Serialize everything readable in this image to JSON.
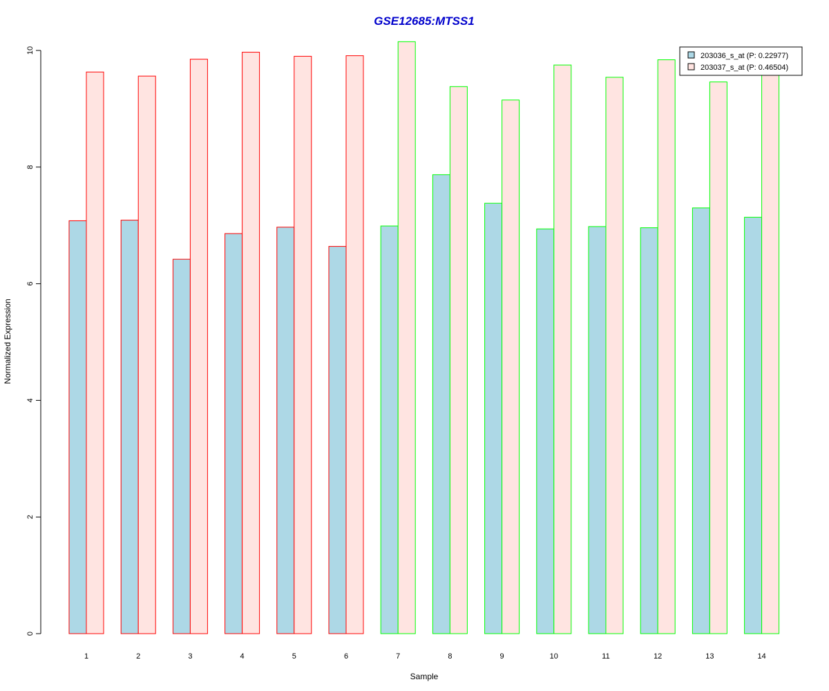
{
  "chart_data": {
    "type": "bar",
    "title": "GSE12685:MTSS1",
    "xlabel": "Sample",
    "ylabel": "Normalized Expression",
    "ylim": [
      0,
      10
    ],
    "y_ticks": [
      "0",
      "2",
      "4",
      "6",
      "8",
      "10"
    ],
    "categories": [
      "1",
      "2",
      "3",
      "4",
      "5",
      "6",
      "7",
      "8",
      "9",
      "10",
      "11",
      "12",
      "13",
      "14"
    ],
    "series": [
      {
        "name": "203036_s_at (P: 0.22977)",
        "fill": "#add8e6",
        "values": [
          7.08,
          7.09,
          6.42,
          6.86,
          6.97,
          6.64,
          6.99,
          7.87,
          7.38,
          6.94,
          6.98,
          6.96,
          7.3,
          7.14
        ]
      },
      {
        "name": "203037_s_at (P: 0.46504)",
        "fill": "#ffe4e1",
        "values": [
          9.63,
          9.56,
          9.85,
          9.97,
          9.9,
          9.91,
          10.15,
          9.38,
          9.15,
          9.75,
          9.54,
          9.84,
          9.46,
          9.72
        ]
      }
    ],
    "group_border_colors": [
      "#ff0000",
      "#ff0000",
      "#ff0000",
      "#ff0000",
      "#ff0000",
      "#ff0000",
      "#00ff00",
      "#00ff00",
      "#00ff00",
      "#00ff00",
      "#00ff00",
      "#00ff00",
      "#00ff00",
      "#00ff00"
    ],
    "title_color": "#0000cc",
    "legend_position": "top-right",
    "grid": false
  }
}
